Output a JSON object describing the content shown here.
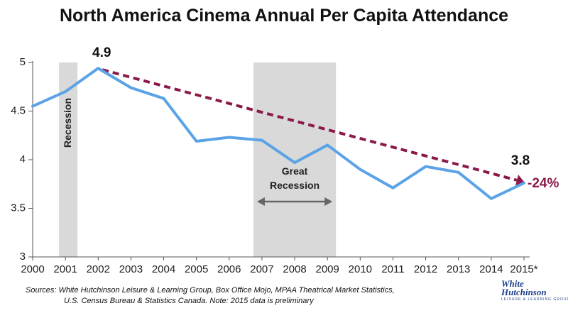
{
  "title": "North America Cinema Annual Per Capita Attendance",
  "sources_line1": "Sources:  White Hutchinson Leisure & Learning Group, Box Office Mojo, MPAA Theatrical Market Statistics,",
  "sources_line2": "U.S. Census Bureau & Statistics Canada. Note: 2015 data is preliminary",
  "logo": {
    "line1": "White",
    "line2": "Hutchinson",
    "tagline": "Leisure & Learning Group"
  },
  "chart_data": {
    "type": "line",
    "title": "North America Cinema Annual Per Capita Attendance",
    "categories": [
      "2000",
      "2001",
      "2002",
      "2003",
      "2004",
      "2005",
      "2006",
      "2007",
      "2008",
      "2009",
      "2010",
      "2011",
      "2012",
      "2013",
      "2014",
      "2015*"
    ],
    "series": [
      {
        "values": [
          4.55,
          4.7,
          4.94,
          4.74,
          4.63,
          4.19,
          4.23,
          4.2,
          3.97,
          4.15,
          3.9,
          3.71,
          3.93,
          3.87,
          3.6,
          3.76
        ],
        "color": "#5ba3e6"
      }
    ],
    "y_ticks": [
      "3",
      "3.5",
      "4",
      "4.5",
      "5"
    ],
    "ylim": [
      3,
      5
    ],
    "grid": false,
    "recession_bands": [
      {
        "label": "Recession",
        "from": "2001",
        "to": "2001",
        "color": "#d9d9d9"
      },
      {
        "label_line1": "Great",
        "label_line2": "Recession",
        "from": "2007",
        "to": "2009",
        "color": "#d9d9d9"
      }
    ],
    "annotations": {
      "start_value": "4.9",
      "end_value": "3.8",
      "change": "-24%",
      "trend_color": "#8b1a4a"
    }
  }
}
